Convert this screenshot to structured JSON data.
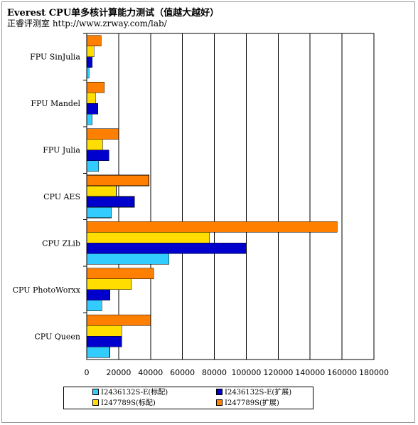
{
  "title": "Everest CPU单多核计算能力测试（值越大越好）",
  "subtitle": "正睿评测室 http://www.zrway.com/lab/",
  "chart_data": {
    "type": "bar",
    "orientation": "horizontal",
    "categories": [
      "FPU SinJulia",
      "FPU Mandel",
      "FPU Julia",
      "CPU AES",
      "CPU ZLib",
      "CPU PhotoWorxx",
      "CPU Queen"
    ],
    "series": [
      {
        "name": "I2436132S-E(标配)",
        "color": "#33ccff",
        "values": [
          1500,
          3500,
          7500,
          15500,
          51500,
          9500,
          14500
        ]
      },
      {
        "name": "I2436132S-E(扩展)",
        "color": "#0000cc",
        "values": [
          3500,
          7000,
          14000,
          30000,
          100000,
          14500,
          22000
        ]
      },
      {
        "name": "I247789S(标配)",
        "color": "#ffdd00",
        "values": [
          4500,
          5500,
          10000,
          18500,
          77000,
          28000,
          22000
        ]
      },
      {
        "name": "I247789S(扩展)",
        "color": "#ff8000",
        "values": [
          9000,
          11000,
          20000,
          39000,
          157000,
          42000,
          40000
        ]
      }
    ],
    "xlim": [
      0,
      180000
    ],
    "xticks": [
      0,
      20000,
      40000,
      60000,
      80000,
      100000,
      120000,
      140000,
      160000,
      180000
    ],
    "grid": true,
    "legend_position": "bottom"
  }
}
